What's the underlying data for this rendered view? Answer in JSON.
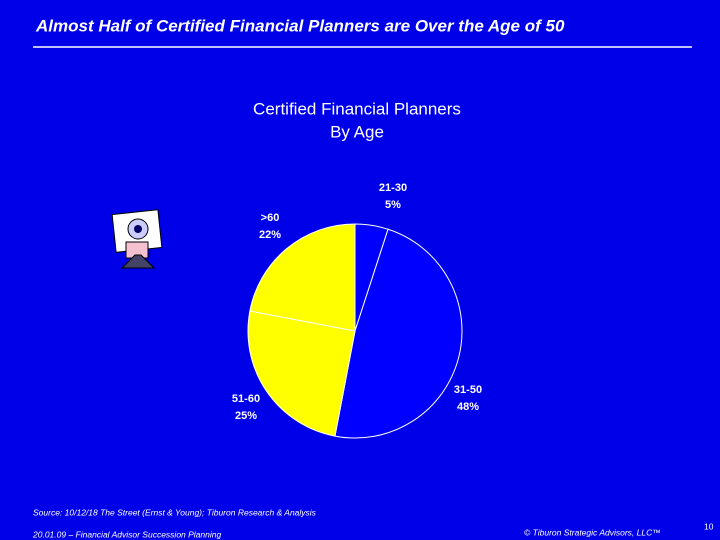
{
  "header": {
    "title": "Almost Half of Certified Financial Planners are Over the Age of 50"
  },
  "chart_data": {
    "type": "pie",
    "title": "Certified Financial Planners",
    "subtitle": "By Age",
    "categories": [
      "21-30",
      "31-50",
      "51-60",
      ">60"
    ],
    "values": [
      5,
      48,
      25,
      22
    ],
    "value_labels": [
      "5%",
      "48%",
      "25%",
      "22%"
    ],
    "colors": [
      "#0000ff",
      "#0000ff",
      "#ffff00",
      "#ffff00"
    ]
  },
  "source": "Source:   10/12/18 The Street (Ernst & Young); Tiburon Research & Analysis",
  "footer": {
    "left": "20.01.09 – Financial Advisor Succession Planning",
    "right": "© Tiburon Strategic Advisors, LLC™",
    "page": "10"
  }
}
